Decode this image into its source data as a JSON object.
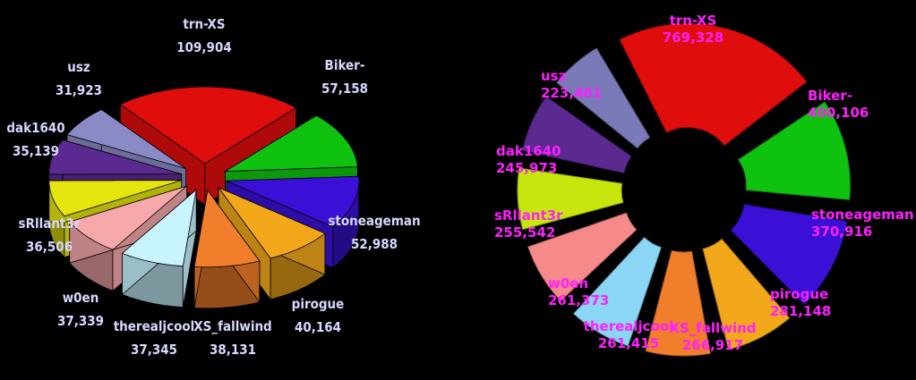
{
  "chart_data": [
    {
      "type": "pie",
      "categories": [
        "trn-XS",
        "Biker-",
        "stoneageman",
        "pirogue",
        "XS_fallwind",
        "therealjcool",
        "w0en",
        "sRllant3r",
        "dak1640",
        "usz"
      ],
      "values": [
        109904,
        57158,
        52988,
        40164,
        38131,
        37345,
        37339,
        36506,
        35139,
        31923
      ],
      "value_labels": [
        "109,904",
        "57,158",
        "52,988",
        "40,164",
        "38,131",
        "37,345",
        "37,339",
        "36,506",
        "35,139",
        "31,923"
      ],
      "colors": [
        "#e00d0d",
        "#10c210",
        "#3a10d6",
        "#f2a81a",
        "#f07e2a",
        "#c8f4ff",
        "#f6a8aa",
        "#e4e40e",
        "#5a2a90",
        "#8a8ac6"
      ],
      "style": "3d-exploded"
    },
    {
      "type": "pie",
      "categories": [
        "trn-XS",
        "Biker-",
        "stoneageman",
        "pirogue",
        "XS_fallwind",
        "therealjcool",
        "w0en",
        "sRllant3r",
        "dak1640",
        "usz"
      ],
      "values": [
        769328,
        400106,
        370916,
        281148,
        266917,
        261415,
        261373,
        255542,
        245973,
        223461
      ],
      "value_labels": [
        "769,328",
        "400,106",
        "370,916",
        "281,148",
        "266,917",
        "261,415",
        "261,373",
        "255,542",
        "245,973",
        "223,461"
      ],
      "colors": [
        "#e00d0d",
        "#10c210",
        "#3a10d6",
        "#f2a81a",
        "#f07e2a",
        "#8ad6f4",
        "#f68a8a",
        "#c8e60e",
        "#5a2a90",
        "#7a7ab8"
      ],
      "style": "exploded"
    }
  ]
}
